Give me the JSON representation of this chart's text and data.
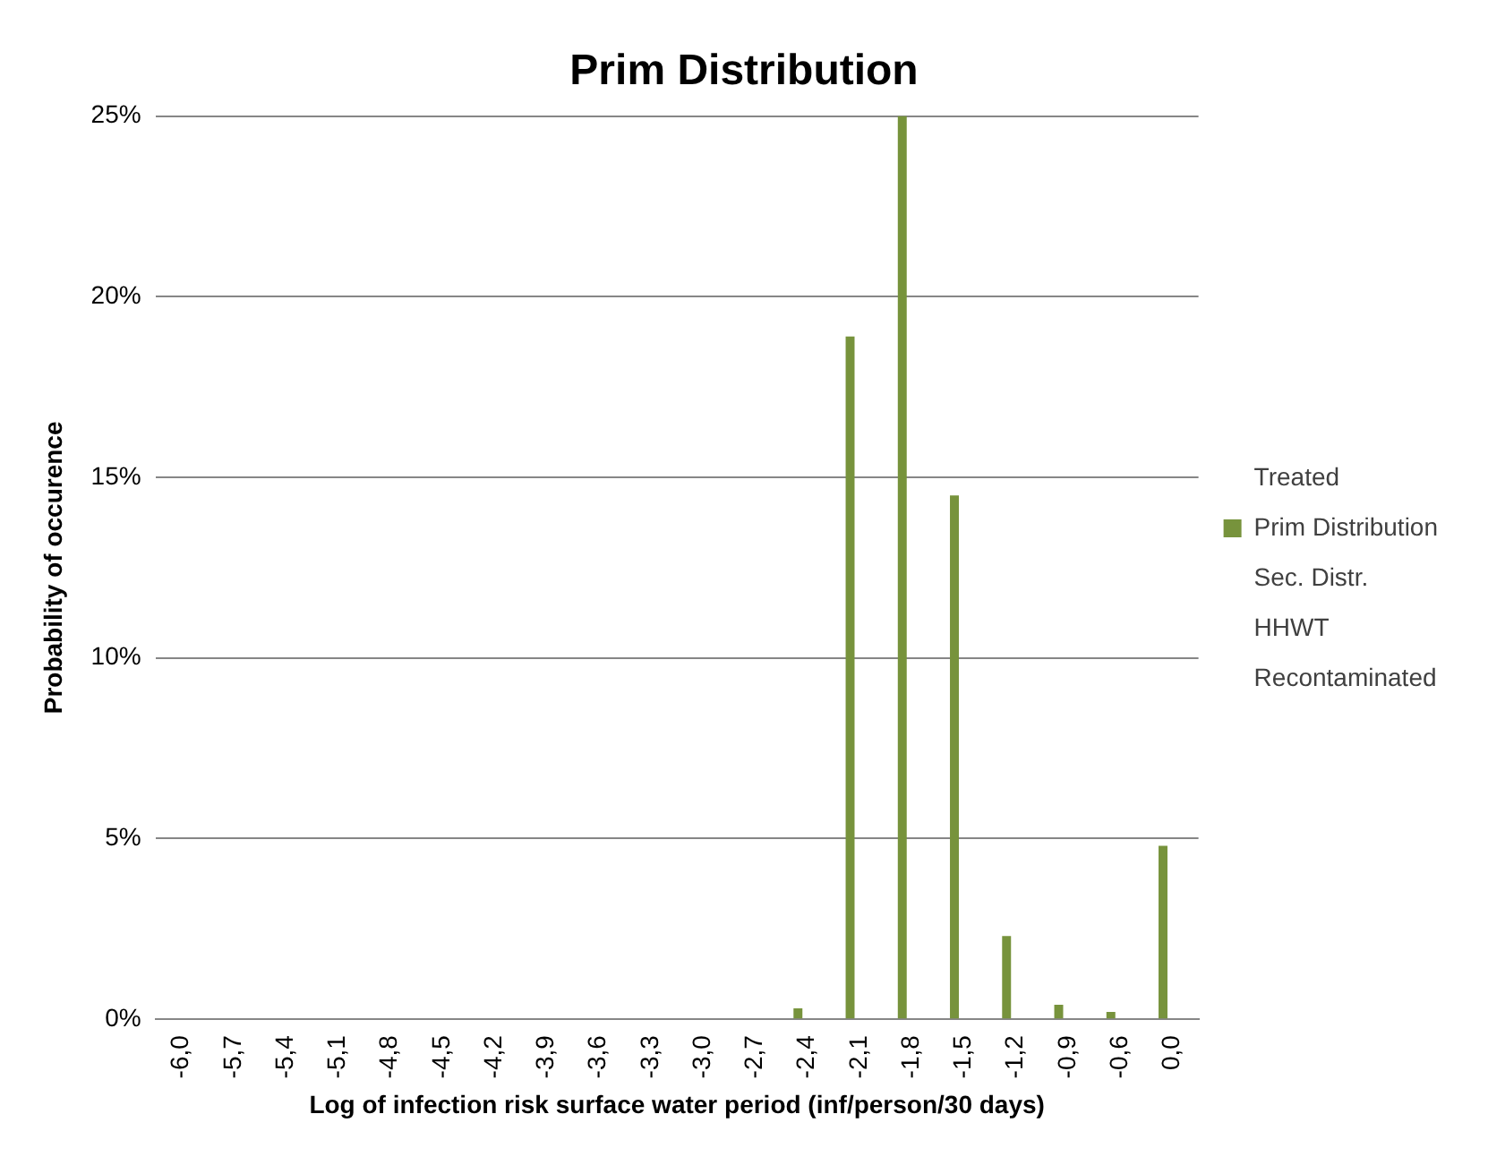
{
  "chart_data": {
    "type": "bar",
    "title": "Prim Distribution",
    "xlabel": "Log of infection risk surface water period (inf/person/30 days)",
    "ylabel": "Probability of occurence",
    "categories": [
      "-6,0",
      "-5,7",
      "-5,4",
      "-5,1",
      "-4,8",
      "-4,5",
      "-4,2",
      "-3,9",
      "-3,6",
      "-3,3",
      "-3,0",
      "-2,7",
      "-2,4",
      "-2,1",
      "-1,8",
      "-1,5",
      "-1,2",
      "-0,9",
      "-0,6",
      "0,0"
    ],
    "series": [
      {
        "name": "Treated",
        "values": [
          null,
          null,
          null,
          null,
          null,
          null,
          null,
          null,
          null,
          null,
          null,
          null,
          null,
          null,
          null,
          null,
          null,
          null,
          null,
          null
        ]
      },
      {
        "name": "Prim Distribution",
        "color": "#77933c",
        "values": [
          0,
          0,
          0,
          0,
          0,
          0,
          0,
          0,
          0,
          0,
          0,
          0,
          0.3,
          18.9,
          25,
          14.5,
          2.3,
          0.4,
          0.2,
          4.8
        ]
      },
      {
        "name": "Sec. Distr.",
        "values": [
          null,
          null,
          null,
          null,
          null,
          null,
          null,
          null,
          null,
          null,
          null,
          null,
          null,
          null,
          null,
          null,
          null,
          null,
          null,
          null
        ]
      },
      {
        "name": "HHWT",
        "values": [
          null,
          null,
          null,
          null,
          null,
          null,
          null,
          null,
          null,
          null,
          null,
          null,
          null,
          null,
          null,
          null,
          null,
          null,
          null,
          null
        ]
      },
      {
        "name": "Recontaminated",
        "values": [
          null,
          null,
          null,
          null,
          null,
          null,
          null,
          null,
          null,
          null,
          null,
          null,
          null,
          null,
          null,
          null,
          null,
          null,
          null,
          null
        ]
      }
    ],
    "ylim": [
      0,
      25
    ],
    "yticks": [
      {
        "value": 0,
        "label": "0%"
      },
      {
        "value": 5,
        "label": "5%"
      },
      {
        "value": 10,
        "label": "10%"
      },
      {
        "value": 15,
        "label": "15%"
      },
      {
        "value": 20,
        "label": "20%"
      },
      {
        "value": 25,
        "label": "25%"
      }
    ],
    "grid": "y",
    "legend": "right"
  }
}
